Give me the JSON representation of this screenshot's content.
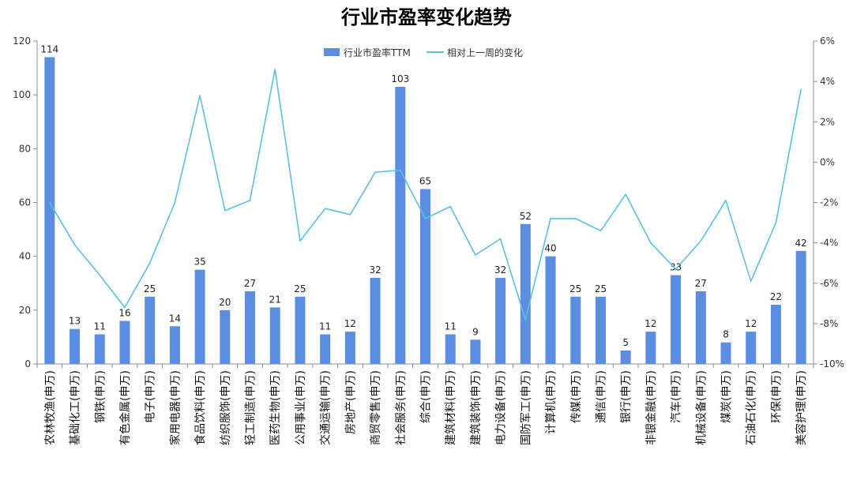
{
  "chart_data": {
    "type": "bar",
    "title": "行业市盈率变化趋势",
    "categories": [
      "农林牧渔(申万)",
      "基础化工(申万)",
      "钢铁(申万)",
      "有色金属(申万)",
      "电子(申万)",
      "家用电器(申万)",
      "食品饮料(申万)",
      "纺织服饰(申万)",
      "轻工制造(申万)",
      "医药生物(申万)",
      "公用事业(申万)",
      "交通运输(申万)",
      "房地产(申万)",
      "商贸零售(申万)",
      "社会服务(申万)",
      "综合(申万)",
      "建筑材料(申万)",
      "建筑装饰(申万)",
      "电力设备(申万)",
      "国防军工(申万)",
      "计算机(申万)",
      "传媒(申万)",
      "通信(申万)",
      "银行(申万)",
      "非银金融(申万)",
      "汽车(申万)",
      "机械设备(申万)",
      "煤炭(申万)",
      "石油石化(申万)",
      "环保(申万)",
      "美容护理(申万)"
    ],
    "series": [
      {
        "name": "行业市盈率TTM",
        "type": "bar",
        "axis": "left",
        "color": "#5b8ee0",
        "values": [
          114,
          13,
          11,
          16,
          25,
          14,
          35,
          20,
          27,
          21,
          25,
          11,
          12,
          32,
          103,
          65,
          11,
          9,
          32,
          52,
          40,
          25,
          25,
          5,
          12,
          33,
          27,
          8,
          12,
          22,
          42
        ],
        "data_labels": [
          "114",
          "13",
          "11",
          "16",
          "25",
          "14",
          "35",
          "20",
          "27",
          "21",
          "25",
          "11",
          "12",
          "32",
          "103",
          "65",
          "11",
          "9",
          "32",
          "52",
          "40",
          "25",
          "25",
          "5",
          "12",
          "33",
          "27",
          "8",
          "12",
          "22",
          "42"
        ]
      },
      {
        "name": "相对上一周的变化",
        "type": "line",
        "axis": "right",
        "color": "#5bc0e0",
        "values": [
          -2.0,
          -4.1,
          -5.6,
          -7.2,
          -5.0,
          -2.0,
          3.3,
          -2.4,
          -1.9,
          4.6,
          -3.9,
          -2.3,
          -2.6,
          -0.5,
          -0.4,
          -2.8,
          -2.2,
          -4.6,
          -3.8,
          -7.8,
          -2.8,
          -2.8,
          -3.4,
          -1.6,
          -4.0,
          -5.3,
          -3.9,
          -1.9,
          -5.9,
          -3.0,
          3.6
        ]
      }
    ],
    "y_left": {
      "min": 0,
      "max": 120,
      "ticks": [
        "0",
        "20",
        "40",
        "60",
        "80",
        "100",
        "120"
      ]
    },
    "y_right": {
      "min": -10,
      "max": 6,
      "ticks": [
        "-10%",
        "-8%",
        "-6%",
        "-4%",
        "-2%",
        "0%",
        "2%",
        "4%",
        "6%"
      ]
    },
    "legend_position": "top-center",
    "grid": false
  }
}
